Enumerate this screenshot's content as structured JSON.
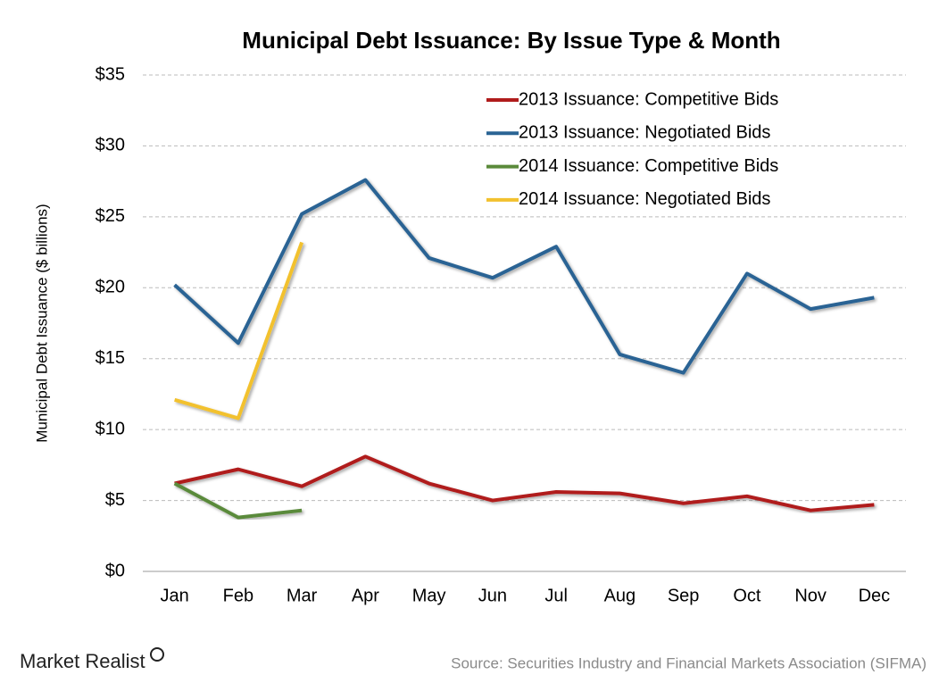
{
  "chart_data": {
    "type": "line",
    "title": "Municipal Debt Issuance: By Issue Type & Month",
    "y_label": "Municipal Debt Issuance ($ billions)",
    "source": "Source: Securities Industry and Financial Markets Association (SIFMA)",
    "brand": "Market Realist",
    "categories": [
      "Jan",
      "Feb",
      "Mar",
      "Apr",
      "May",
      "Jun",
      "Jul",
      "Aug",
      "Sep",
      "Oct",
      "Nov",
      "Dec"
    ],
    "series": [
      {
        "name": "2013 Issuance: Competitive Bids",
        "color": "#b01c1c",
        "values": [
          6.2,
          7.2,
          6.0,
          8.1,
          6.2,
          5.0,
          5.6,
          5.5,
          4.8,
          5.3,
          4.3,
          4.7
        ]
      },
      {
        "name": "2013 Issuance: Negotiated Bids",
        "color": "#2a6494",
        "values": [
          20.2,
          16.1,
          25.2,
          27.6,
          22.1,
          20.7,
          22.9,
          15.3,
          14.0,
          21.0,
          18.5,
          19.3
        ]
      },
      {
        "name": "2014 Issuance: Competitive Bids",
        "color": "#5a8a3a",
        "values": [
          6.2,
          3.8,
          4.3,
          null,
          null,
          null,
          null,
          null,
          null,
          null,
          null,
          null
        ]
      },
      {
        "name": "2014 Issuance: Negotiated Bids",
        "color": "#f2c12e",
        "values": [
          12.1,
          10.8,
          23.2,
          null,
          null,
          null,
          null,
          null,
          null,
          null,
          null,
          null
        ]
      }
    ],
    "ylim": [
      0,
      35
    ],
    "yticks": [
      {
        "value": 0,
        "label": "$0"
      },
      {
        "value": 5,
        "label": "$5"
      },
      {
        "value": 10,
        "label": "$10"
      },
      {
        "value": 15,
        "label": "$15"
      },
      {
        "value": 20,
        "label": "$20"
      },
      {
        "value": 25,
        "label": "$25"
      },
      {
        "value": 30,
        "label": "$30"
      },
      {
        "value": 35,
        "label": "$35"
      }
    ],
    "grid": true,
    "legend": "top-right"
  }
}
